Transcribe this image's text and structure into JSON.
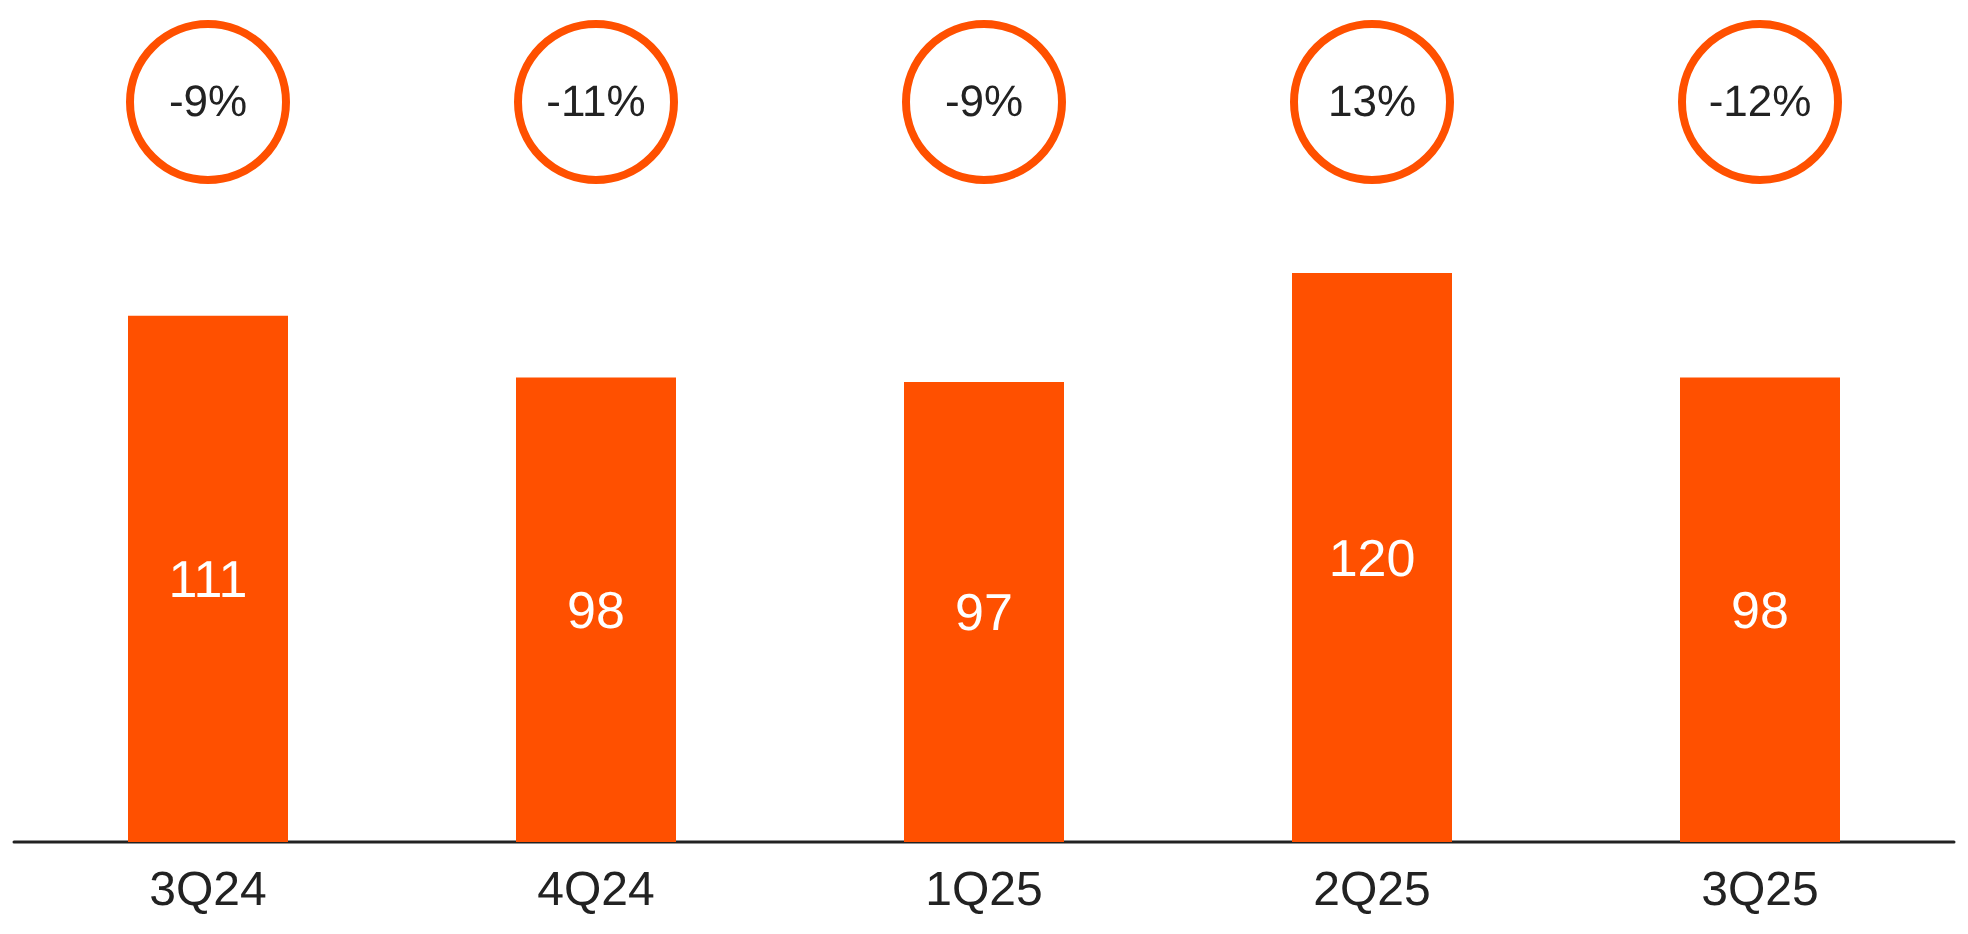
{
  "chart_data": {
    "type": "bar",
    "categories": [
      "3Q24",
      "4Q24",
      "1Q25",
      "2Q25",
      "3Q25"
    ],
    "values": [
      111,
      98,
      97,
      120,
      98
    ],
    "color": "#ff5000",
    "data_labels": true,
    "annotations": [
      "-9%",
      "-11%",
      "-9%",
      "13%",
      "-12%"
    ]
  }
}
